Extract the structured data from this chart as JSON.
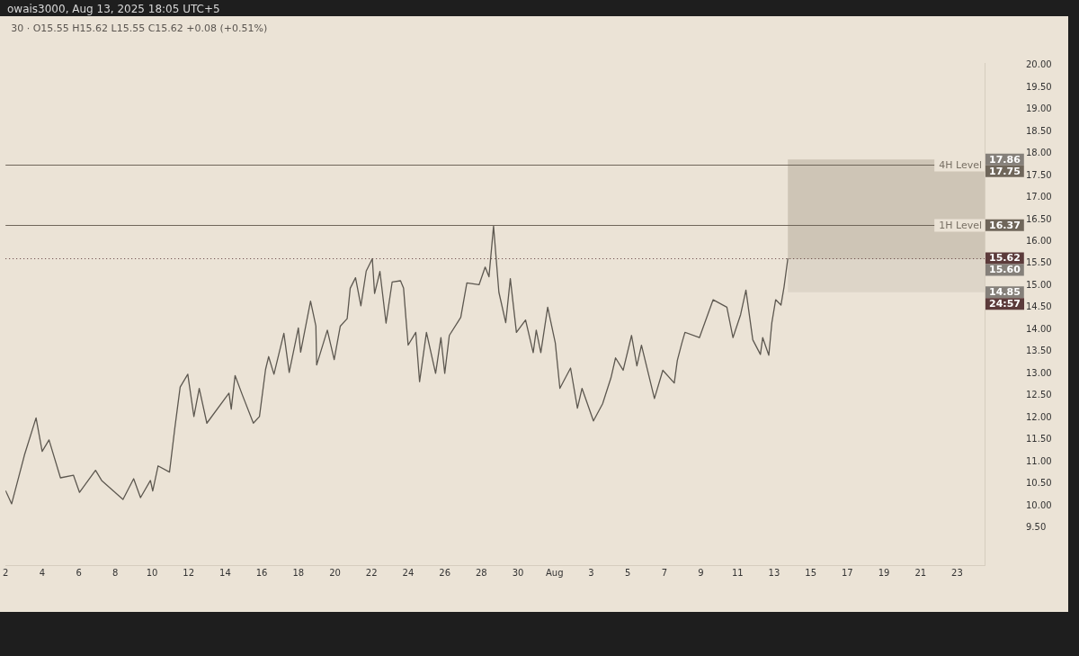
{
  "chart_data": {
    "type": "line",
    "title": "30 · O15.55 H15.62 L15.55 C15.62 +0.08 (+0.51%)",
    "annotations": [
      "owais3000, Aug 13, 2025 18:05 UTC+5",
      "24:57",
      {
        "text": "17.75",
        "x": "2025-08-24T12:00",
        "y": 17.75
      },
      {
        "text": "16.37",
        "x": "2025-08-24T12:00",
        "y": 16.37
      },
      {
        "text": "15.62",
        "x": "2025-08-24T12:00",
        "y": 15.62
      },
      {
        "text": "17.86",
        "x": "2025-08-24T12:00",
        "y": 17.86
      },
      {
        "text": "15.60",
        "x": "2025-08-24T12:00",
        "y": 15.6
      },
      {
        "text": "14.85",
        "x": "2025-08-24T12:00",
        "y": 14.85
      }
    ],
    "legend": false,
    "marker": "none",
    "line_style": "solid",
    "xlim": [
      "2025-07-02",
      "2025-08-24T12:00"
    ],
    "xticks": [
      {
        "value": "2025-07-02",
        "label": "2"
      },
      {
        "value": "2025-07-04",
        "label": "4"
      },
      {
        "value": "2025-07-06",
        "label": "6"
      },
      {
        "value": "2025-07-08",
        "label": "8"
      },
      {
        "value": "2025-07-10",
        "label": "10"
      },
      {
        "value": "2025-07-12",
        "label": "12"
      },
      {
        "value": "2025-07-14",
        "label": "14"
      },
      {
        "value": "2025-07-16",
        "label": "16"
      },
      {
        "value": "2025-07-18",
        "label": "18"
      },
      {
        "value": "2025-07-20",
        "label": "20"
      },
      {
        "value": "2025-07-22",
        "label": "22"
      },
      {
        "value": "2025-07-24",
        "label": "24"
      },
      {
        "value": "2025-07-26",
        "label": "26"
      },
      {
        "value": "2025-07-28",
        "label": "28"
      },
      {
        "value": "2025-07-30",
        "label": "30"
      },
      {
        "value": "2025-08-01",
        "label": "Aug"
      },
      {
        "value": "2025-08-03",
        "label": "3"
      },
      {
        "value": "2025-08-05",
        "label": "5"
      },
      {
        "value": "2025-08-07",
        "label": "7"
      },
      {
        "value": "2025-08-09",
        "label": "9"
      },
      {
        "value": "2025-08-11",
        "label": "11"
      },
      {
        "value": "2025-08-13",
        "label": "13"
      },
      {
        "value": "2025-08-15",
        "label": "15"
      },
      {
        "value": "2025-08-17",
        "label": "17"
      },
      {
        "value": "2025-08-19",
        "label": "19"
      },
      {
        "value": "2025-08-21",
        "label": "21"
      },
      {
        "value": "2025-08-23",
        "label": "23"
      }
    ],
    "ylim": [
      8.66,
      20.05
    ],
    "yticks": [
      {
        "value": 9.5,
        "label": "9.50"
      },
      {
        "value": 10,
        "label": "10.00"
      },
      {
        "value": 10.5,
        "label": "10.50"
      },
      {
        "value": 11,
        "label": "11.00"
      },
      {
        "value": 11.5,
        "label": "11.50"
      },
      {
        "value": 12,
        "label": "12.00"
      },
      {
        "value": 12.5,
        "label": "12.50"
      },
      {
        "value": 13,
        "label": "13.00"
      },
      {
        "value": 13.5,
        "label": "13.50"
      },
      {
        "value": 14,
        "label": "14.00"
      },
      {
        "value": 14.5,
        "label": "14.50"
      },
      {
        "value": 15,
        "label": "15.00"
      },
      {
        "value": 15.5,
        "label": "15.50"
      },
      {
        "value": 16,
        "label": "16.00"
      },
      {
        "value": 16.5,
        "label": "16.50"
      },
      {
        "value": 17,
        "label": "17.00"
      },
      {
        "value": 17.5,
        "label": "17.50"
      },
      {
        "value": 18,
        "label": "18.00"
      },
      {
        "value": 18.5,
        "label": "18.50"
      },
      {
        "value": 19,
        "label": "19.00"
      },
      {
        "value": 19.5,
        "label": "19.50"
      },
      {
        "value": 20,
        "label": "20.00"
      }
    ],
    "ref_lines": [
      {
        "axis": "y",
        "value": 17.75,
        "label": "4H Level",
        "color": "#6f665a",
        "line_style": "solid"
      },
      {
        "axis": "y",
        "value": 16.37,
        "label": "1H Level",
        "color": "#6f665a",
        "line_style": "solid"
      },
      {
        "axis": "y",
        "value": 15.62,
        "color": "#5c3b3b",
        "line_style": "dotted"
      }
    ],
    "bands": [
      {
        "axis": "y",
        "from": 15.6,
        "to": 17.86,
        "color": "#cec5b6"
      },
      {
        "axis": "y",
        "from": 14.85,
        "to": 15.6,
        "color": "#ddd5c8"
      }
    ],
    "series": [
      {
        "color": "#5d5850",
        "x": [
          "2025-07-02T00:00",
          "2025-07-02T08:00",
          "2025-07-03T01:00",
          "2025-07-03T16:00",
          "2025-07-04T00:00",
          "2025-07-04T09:00",
          "2025-07-05T00:00",
          "2025-07-05T17:00",
          "2025-07-06T01:00",
          "2025-07-06T22:00",
          "2025-07-07T06:00",
          "2025-07-08T10:00",
          "2025-07-09T00:00",
          "2025-07-09T09:00",
          "2025-07-09T22:00",
          "2025-07-10T01:00",
          "2025-07-10T08:00",
          "2025-07-10T23:00",
          "2025-07-11T06:00",
          "2025-07-11T13:00",
          "2025-07-11T23:00",
          "2025-07-12T07:00",
          "2025-07-12T14:00",
          "2025-07-13T00:00",
          "2025-07-14T05:00",
          "2025-07-14T08:00",
          "2025-07-14T13:00",
          "2025-07-14T23:00",
          "2025-07-15T13:00",
          "2025-07-15T21:00",
          "2025-07-16T05:00",
          "2025-07-16T09:00",
          "2025-07-16T16:00",
          "2025-07-17T05:00",
          "2025-07-17T12:00",
          "2025-07-18T00:00",
          "2025-07-18T03:00",
          "2025-07-18T16:00",
          "2025-07-18T23:00",
          "2025-07-19T00:00",
          "2025-07-19T14:00",
          "2025-07-19T23:00",
          "2025-07-20T07:00",
          "2025-07-20T16:00",
          "2025-07-20T20:00",
          "2025-07-21T03:00",
          "2025-07-21T10:00",
          "2025-07-21T17:00",
          "2025-07-22T01:00",
          "2025-07-22T04:00",
          "2025-07-22T11:00",
          "2025-07-22T19:00",
          "2025-07-23T03:00",
          "2025-07-23T14:00",
          "2025-07-23T18:00",
          "2025-07-23T21:00",
          "2025-07-24T00:00",
          "2025-07-24T10:00",
          "2025-07-24T15:00",
          "2025-07-25T00:00",
          "2025-07-25T12:00",
          "2025-07-25T19:00",
          "2025-07-26T00:00",
          "2025-07-26T06:00",
          "2025-07-26T21:00",
          "2025-07-27T05:00",
          "2025-07-27T21:00",
          "2025-07-28T05:00",
          "2025-07-28T10:00",
          "2025-07-28T16:00",
          "2025-07-28T23:00",
          "2025-07-29T08:00",
          "2025-07-29T14:00",
          "2025-07-29T22:00",
          "2025-07-30T10:00",
          "2025-07-30T20:00",
          "2025-07-31T00:00",
          "2025-07-31T06:00",
          "2025-07-31T15:00",
          "2025-08-01T01:00",
          "2025-08-01T07:00",
          "2025-08-01T21:00",
          "2025-08-02T06:00",
          "2025-08-02T12:00",
          "2025-08-03T03:00",
          "2025-08-03T15:00",
          "2025-08-04T02:00",
          "2025-08-04T08:00",
          "2025-08-04T18:00",
          "2025-08-05T05:00",
          "2025-08-05T12:00",
          "2025-08-05T18:00",
          "2025-08-06T11:00",
          "2025-08-06T22:00",
          "2025-08-07T13:00",
          "2025-08-07T17:00",
          "2025-08-07T23:00",
          "2025-08-08T03:00",
          "2025-08-08T22:00",
          "2025-08-09T16:00",
          "2025-08-10T10:00",
          "2025-08-10T18:00",
          "2025-08-11T04:00",
          "2025-08-11T11:00",
          "2025-08-11T20:00",
          "2025-08-12T06:00",
          "2025-08-12T09:00",
          "2025-08-12T17:00",
          "2025-08-12T21:00",
          "2025-08-13T02:00",
          "2025-08-13T09:00",
          "2025-08-13T13:00",
          "2025-08-13T18:00"
        ],
        "values": [
          10.35,
          10.05,
          11.17,
          12.0,
          11.24,
          11.5,
          10.64,
          10.7,
          10.31,
          10.81,
          10.58,
          10.15,
          10.62,
          10.19,
          10.58,
          10.34,
          10.91,
          10.77,
          11.77,
          12.7,
          12.99,
          12.03,
          12.67,
          11.88,
          12.56,
          12.2,
          12.96,
          12.5,
          11.88,
          12.03,
          13.1,
          13.39,
          12.99,
          13.92,
          13.03,
          14.04,
          13.49,
          14.65,
          14.08,
          13.2,
          13.99,
          13.32,
          14.08,
          14.25,
          14.94,
          15.18,
          14.54,
          15.33,
          15.61,
          14.82,
          15.32,
          14.15,
          15.08,
          15.11,
          14.94,
          14.28,
          13.65,
          13.94,
          12.82,
          13.94,
          13.01,
          13.82,
          13.01,
          13.87,
          14.28,
          15.06,
          15.02,
          15.42,
          15.2,
          16.35,
          14.85,
          14.16,
          15.16,
          13.94,
          14.22,
          13.48,
          13.99,
          13.48,
          14.51,
          13.7,
          12.67,
          13.13,
          12.22,
          12.67,
          11.93,
          12.32,
          12.91,
          13.36,
          13.08,
          13.87,
          13.18,
          13.65,
          12.44,
          13.08,
          12.79,
          13.3,
          13.7,
          13.94,
          13.82,
          14.68,
          14.51,
          13.82,
          14.34,
          14.9,
          13.77,
          13.44,
          13.82,
          13.42,
          14.16,
          14.68,
          14.56,
          14.97,
          15.62
        ]
      }
    ]
  }
}
